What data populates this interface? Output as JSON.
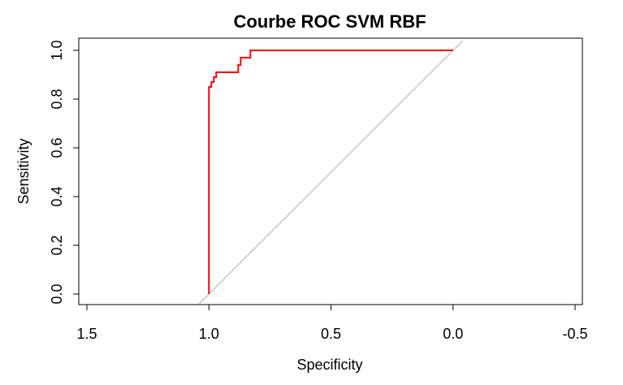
{
  "chart_data": {
    "type": "line",
    "title": "Courbe ROC SVM RBF",
    "xlabel": "Specificity",
    "ylabel": "Sensitivity",
    "xlim": [
      1.5,
      -0.5
    ],
    "ylim": [
      0.0,
      1.0
    ],
    "x_ticks": [
      1.5,
      1.0,
      0.5,
      0.0,
      -0.5
    ],
    "x_tick_labels": [
      "1.5",
      "1.0",
      "0.5",
      "0.0",
      "-0.5"
    ],
    "y_ticks": [
      0.0,
      0.2,
      0.4,
      0.6,
      0.8,
      1.0
    ],
    "y_tick_labels": [
      "0.0",
      "0.2",
      "0.4",
      "0.6",
      "0.8",
      "1.0"
    ],
    "grid": false,
    "legend": "none",
    "colors": {
      "roc_curve": "#ff0000",
      "diagonal": "#b0b0b0",
      "axis": "#000000"
    },
    "series": [
      {
        "specificity": [
          1.0,
          1.0,
          0.99,
          0.99,
          0.98,
          0.98,
          0.97,
          0.97,
          0.94,
          0.94,
          0.93,
          0.93,
          0.91,
          0.91,
          0.88,
          0.88,
          0.87,
          0.87,
          0.84,
          0.84,
          0.83,
          0.83,
          0.0
        ],
        "sensitivity": [
          0.0,
          0.85,
          0.85,
          0.87,
          0.87,
          0.89,
          0.89,
          0.91,
          0.91,
          0.91,
          0.91,
          0.91,
          0.91,
          0.91,
          0.91,
          0.94,
          0.94,
          0.97,
          0.97,
          0.97,
          0.97,
          1.0,
          1.0
        ]
      },
      {
        "specificity": [
          1.04,
          -0.04
        ],
        "sensitivity": [
          -0.04,
          1.04
        ]
      }
    ]
  }
}
